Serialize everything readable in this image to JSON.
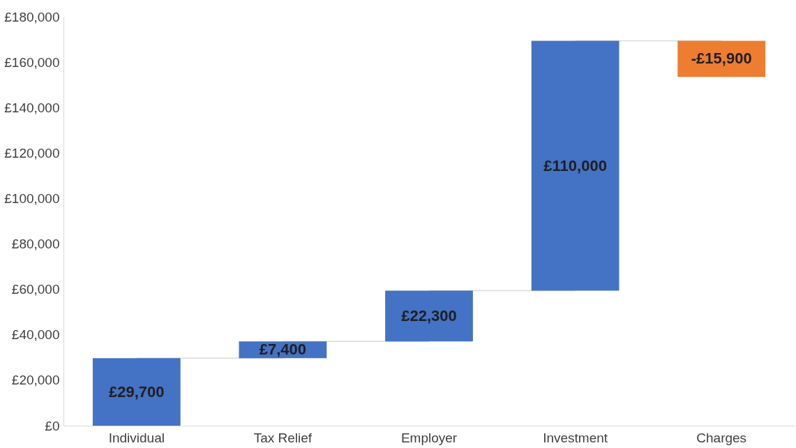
{
  "chart_data": {
    "type": "bar",
    "categories": [
      "Individual",
      "Tax Relief",
      "Employer",
      "Investment",
      "Charges"
    ],
    "values": [
      29700,
      7400,
      22300,
      110000,
      -15900
    ],
    "base": [
      0,
      29700,
      37100,
      59400,
      169400
    ],
    "colors": [
      "#4472c4",
      "#4472c4",
      "#4472c4",
      "#4472c4",
      "#ed7d31"
    ],
    "value_labels": [
      "£29,700",
      "£7,400",
      "£22,300",
      "£110,000",
      "-£15,900"
    ],
    "ylim": [
      0,
      180000
    ],
    "yticks": [
      {
        "value": 0,
        "label": "£0"
      },
      {
        "value": 20000,
        "label": "£20,000"
      },
      {
        "value": 40000,
        "label": "£40,000"
      },
      {
        "value": 60000,
        "label": "£60,000"
      },
      {
        "value": 80000,
        "label": "£80,000"
      },
      {
        "value": 100000,
        "label": "£100,000"
      },
      {
        "value": 120000,
        "label": "£120,000"
      },
      {
        "value": 140000,
        "label": "£140,000"
      },
      {
        "value": 160000,
        "label": "£160,000"
      },
      {
        "value": 180000,
        "label": "£180,000"
      }
    ],
    "grid": false
  }
}
